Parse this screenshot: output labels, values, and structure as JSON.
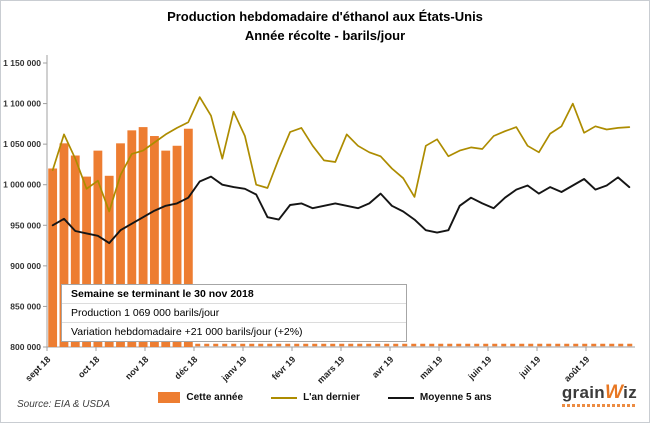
{
  "title": {
    "line1": "Production hebdomadaire d'éthanol aux États-Unis",
    "line2": "Année récolte - barils/jour"
  },
  "annotation": {
    "line1": "Semaine se terminant le 30 nov 2018",
    "line2": "Production 1 069 000 barils/jour",
    "line3": "Variation hebdomadaire +21 000 barils/jour (+2%)"
  },
  "source": "Source: EIA & USDA",
  "legend": [
    {
      "label": "Cette année",
      "type": "bar",
      "color": "#ED7D31"
    },
    {
      "label": "L'an dernier",
      "type": "line",
      "color": "#AD8C00"
    },
    {
      "label": "Moyenne 5 ans",
      "type": "line",
      "color": "#151515"
    }
  ],
  "logo": {
    "grain": "grain",
    "w": "W",
    "iz": "iz"
  },
  "chart_data": {
    "type": "bar",
    "subtype": "bar + line combo, weekly data over harvest year",
    "title": "Production hebdomadaire d'éthanol aux États-Unis — Année récolte - barils/jour",
    "unit": "barils/jour",
    "ylim": [
      800000,
      1150000
    ],
    "ytick_step": 50000,
    "ytick_labels": [
      "800 000",
      "850 000",
      "900 000",
      "950 000",
      "1 000 000",
      "1 050 000",
      "1 100 000",
      "1 150 000"
    ],
    "x_month_labels": [
      "sept 18",
      "oct 18",
      "nov 18",
      "déc 18",
      "janv 19",
      "févr 19",
      "mars 19",
      "avr 19",
      "mai 19",
      "juin 19",
      "juil 19",
      "août 19"
    ],
    "weeks_total": 52,
    "grid": "off",
    "legend_position": "bottom",
    "series": [
      {
        "name": "Cette année",
        "type": "bar",
        "color": "#ED7D31",
        "start_week": 0,
        "values": [
          1020000,
          1051000,
          1036000,
          1010000,
          1042000,
          1011000,
          1051000,
          1067000,
          1071000,
          1060000,
          1042000,
          1048000,
          1069000
        ]
      },
      {
        "name": "L'an dernier",
        "type": "line",
        "color": "#AD8C00",
        "values": [
          1018000,
          1062000,
          1032000,
          995000,
          1005000,
          967000,
          1012000,
          1038000,
          1042000,
          1052000,
          1062000,
          1070000,
          1077000,
          1108000,
          1085000,
          1032000,
          1090000,
          1060000,
          1000000,
          996000,
          1032000,
          1065000,
          1070000,
          1048000,
          1030000,
          1028000,
          1062000,
          1048000,
          1040000,
          1035000,
          1020000,
          1008000,
          985000,
          1048000,
          1056000,
          1035000,
          1042000,
          1046000,
          1044000,
          1060000,
          1066000,
          1071000,
          1048000,
          1040000,
          1063000,
          1072000,
          1100000,
          1064000,
          1072000,
          1068000,
          1070000,
          1071000
        ]
      },
      {
        "name": "Moyenne 5 ans",
        "type": "line",
        "color": "#151515",
        "values": [
          950000,
          958000,
          943000,
          940000,
          937000,
          928000,
          944000,
          952000,
          960000,
          968000,
          974000,
          977000,
          984000,
          1004000,
          1010000,
          1000000,
          997000,
          995000,
          988000,
          960000,
          957000,
          975000,
          977000,
          971000,
          974000,
          977000,
          974000,
          971000,
          977000,
          989000,
          974000,
          967000,
          957000,
          944000,
          941000,
          944000,
          974000,
          984000,
          977000,
          971000,
          984000,
          994000,
          999000,
          989000,
          997000,
          991000,
          999000,
          1007000,
          994000,
          999000,
          1009000,
          997000
        ]
      }
    ],
    "no_data_baseline": {
      "style": "dashed",
      "color": "#ED7D31",
      "from_week": 13,
      "to_week": 52,
      "value": 800000
    }
  }
}
